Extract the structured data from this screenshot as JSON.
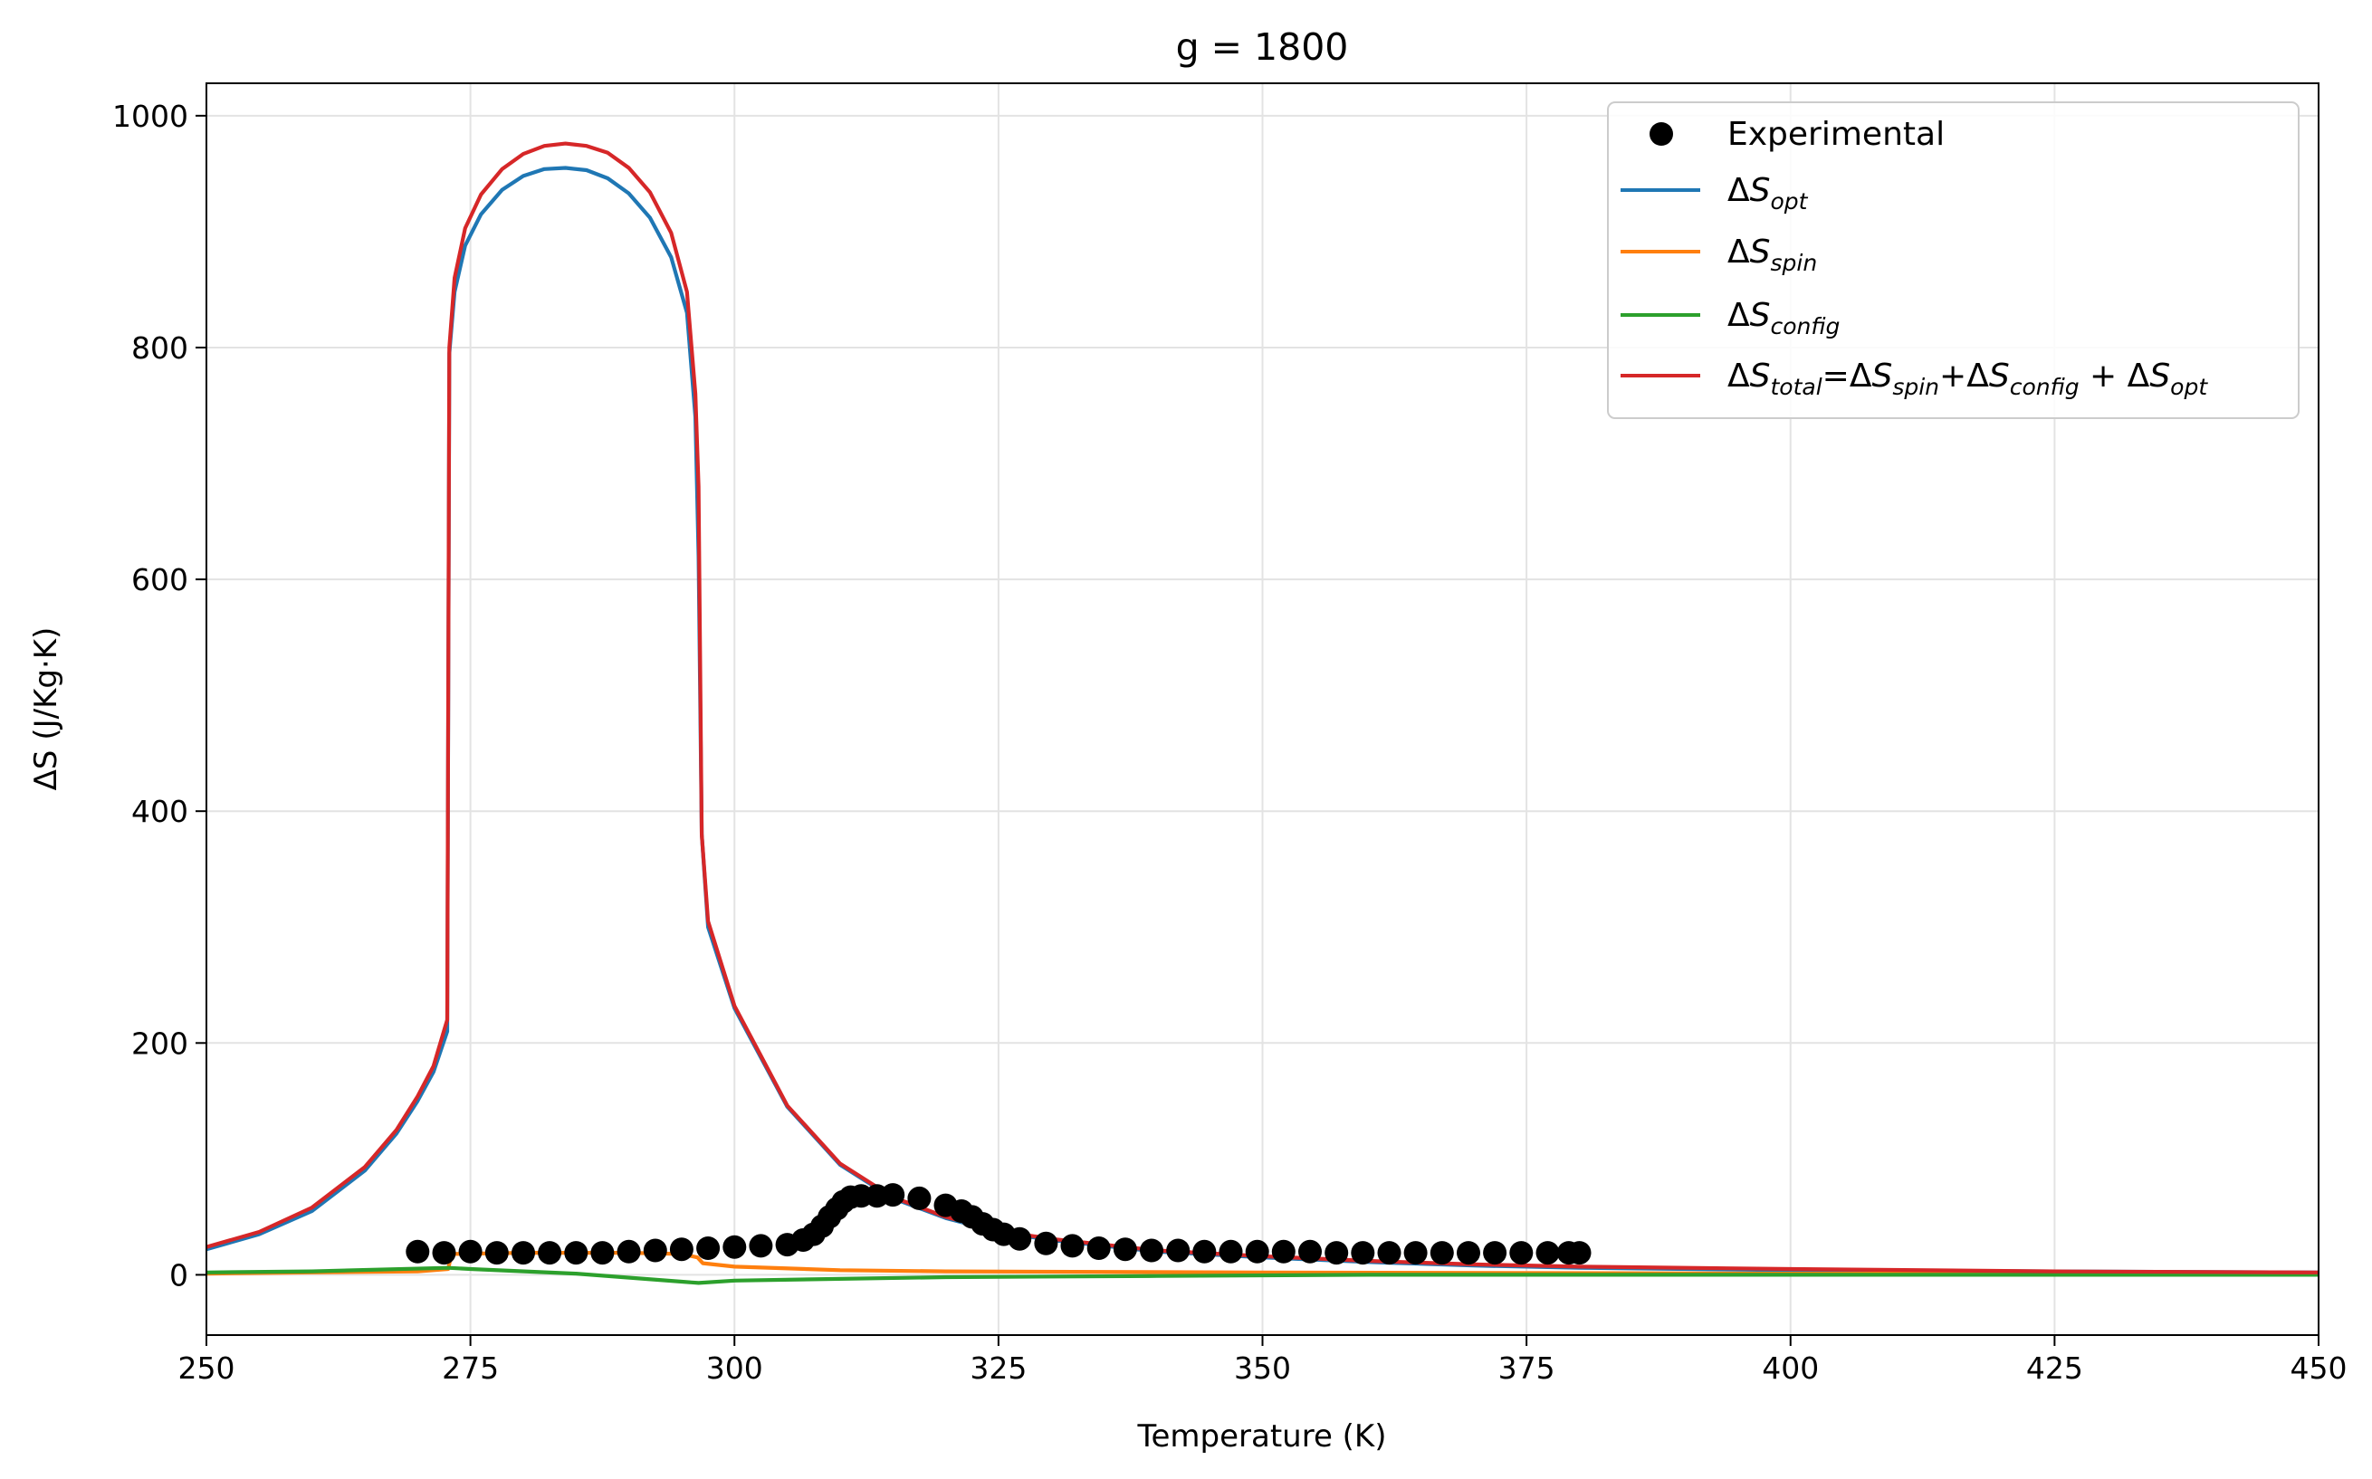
{
  "chart_data": {
    "type": "line",
    "title": "g = 1800",
    "xlabel": "Temperature (K)",
    "ylabel": "ΔS (J/Kg·K)",
    "xlim": [
      250,
      450
    ],
    "ylim": [
      -52,
      1028
    ],
    "x_ticks": [
      "250",
      "275",
      "300",
      "325",
      "350",
      "375",
      "400",
      "425",
      "450"
    ],
    "y_ticks": [
      "0",
      "200",
      "400",
      "600",
      "800",
      "1000"
    ],
    "grid": true,
    "legend_position": "top-right",
    "legend": {
      "experimental": "Experimental",
      "delta": "Δ",
      "s": "S",
      "opt_sub": "opt",
      "spin_sub": "spin",
      "config_sub": "config",
      "total_sub": "total",
      "eq": "=",
      "plus": "+",
      "plus_spaced": " + "
    },
    "colors": {
      "opt": "#1f77b4",
      "spin": "#ff7f0e",
      "config": "#2ca02c",
      "total": "#d62728",
      "experimental": "#000000"
    },
    "series": [
      {
        "key": "opt",
        "values": [
          [
            250,
            22
          ],
          [
            255,
            35
          ],
          [
            260,
            55
          ],
          [
            265,
            90
          ],
          [
            268,
            122
          ],
          [
            270,
            150
          ],
          [
            271.5,
            175
          ],
          [
            272.8,
            210
          ],
          [
            273.0,
            795
          ],
          [
            273.5,
            848
          ],
          [
            274.5,
            888
          ],
          [
            276,
            915
          ],
          [
            278,
            936
          ],
          [
            280,
            948
          ],
          [
            282,
            954
          ],
          [
            284,
            955
          ],
          [
            286,
            953
          ],
          [
            288,
            946
          ],
          [
            290,
            933
          ],
          [
            292,
            912
          ],
          [
            294,
            878
          ],
          [
            295.5,
            830
          ],
          [
            296.3,
            740
          ],
          [
            296.6,
            620
          ],
          [
            296.9,
            380
          ],
          [
            297.5,
            300
          ],
          [
            300,
            230
          ],
          [
            305,
            145
          ],
          [
            310,
            95
          ],
          [
            315,
            66
          ],
          [
            320,
            49
          ],
          [
            325,
            37
          ],
          [
            330,
            30
          ],
          [
            340,
            20
          ],
          [
            350,
            15
          ],
          [
            360,
            11
          ],
          [
            370,
            8
          ],
          [
            380,
            6
          ],
          [
            400,
            4
          ],
          [
            425,
            3
          ],
          [
            450,
            2
          ]
        ]
      },
      {
        "key": "spin",
        "values": [
          [
            250,
            1
          ],
          [
            260,
            2
          ],
          [
            270,
            3
          ],
          [
            272.9,
            5
          ],
          [
            273.2,
            18
          ],
          [
            280,
            19
          ],
          [
            290,
            19
          ],
          [
            295,
            18
          ],
          [
            296.5,
            15
          ],
          [
            297,
            10
          ],
          [
            300,
            7
          ],
          [
            310,
            4
          ],
          [
            320,
            3
          ],
          [
            350,
            2
          ],
          [
            400,
            1
          ],
          [
            450,
            1
          ]
        ]
      },
      {
        "key": "config",
        "values": [
          [
            250,
            2
          ],
          [
            260,
            3
          ],
          [
            272.9,
            6
          ],
          [
            275,
            5
          ],
          [
            285,
            1
          ],
          [
            296.6,
            -7
          ],
          [
            300,
            -5
          ],
          [
            320,
            -2
          ],
          [
            340,
            -1
          ],
          [
            360,
            0
          ],
          [
            400,
            0
          ],
          [
            450,
            0
          ]
        ]
      },
      {
        "key": "total",
        "values": [
          [
            250,
            24
          ],
          [
            255,
            37
          ],
          [
            260,
            58
          ],
          [
            265,
            93
          ],
          [
            268,
            125
          ],
          [
            270,
            154
          ],
          [
            271.5,
            180
          ],
          [
            272.8,
            220
          ],
          [
            273.0,
            800
          ],
          [
            273.5,
            860
          ],
          [
            274.5,
            903
          ],
          [
            276,
            932
          ],
          [
            278,
            954
          ],
          [
            280,
            967
          ],
          [
            282,
            974
          ],
          [
            284,
            976
          ],
          [
            286,
            974
          ],
          [
            288,
            968
          ],
          [
            290,
            955
          ],
          [
            292,
            934
          ],
          [
            294,
            899
          ],
          [
            295.5,
            848
          ],
          [
            296.3,
            760
          ],
          [
            296.6,
            680
          ],
          [
            296.9,
            380
          ],
          [
            297.5,
            305
          ],
          [
            300,
            232
          ],
          [
            305,
            146
          ],
          [
            310,
            96
          ],
          [
            315,
            67
          ],
          [
            320,
            50
          ],
          [
            325,
            38
          ],
          [
            330,
            31
          ],
          [
            340,
            21
          ],
          [
            350,
            16
          ],
          [
            360,
            12
          ],
          [
            370,
            9
          ],
          [
            380,
            7
          ],
          [
            400,
            5
          ],
          [
            425,
            3
          ],
          [
            450,
            2
          ]
        ]
      }
    ],
    "experimental": {
      "x": [
        270,
        272.5,
        275,
        277.5,
        280,
        282.5,
        285,
        287.5,
        290,
        292.5,
        295,
        297.5,
        300,
        302.5,
        305,
        306.5,
        307.5,
        308.3,
        309,
        309.7,
        310.3,
        311,
        312,
        313.5,
        315,
        317.5,
        320,
        321.5,
        322.5,
        323.5,
        324.5,
        325.5,
        327,
        329.5,
        332,
        334.5,
        337,
        339.5,
        342,
        344.5,
        347,
        349.5,
        352,
        354.5,
        357,
        359.5,
        362,
        364.5,
        367,
        369.5,
        372,
        374.5,
        377,
        379,
        380
      ],
      "y": [
        20,
        19,
        20,
        19,
        19,
        19,
        19,
        19,
        20,
        21,
        22,
        23,
        24,
        25,
        26,
        30,
        35,
        42,
        50,
        57,
        63,
        67,
        68,
        68,
        69,
        66,
        60,
        55,
        50,
        44,
        39,
        35,
        31,
        27,
        25,
        23,
        22,
        21,
        21,
        20,
        20,
        20,
        20,
        20,
        19,
        19,
        19,
        19,
        19,
        19,
        19,
        19,
        19,
        19,
        19
      ]
    }
  }
}
